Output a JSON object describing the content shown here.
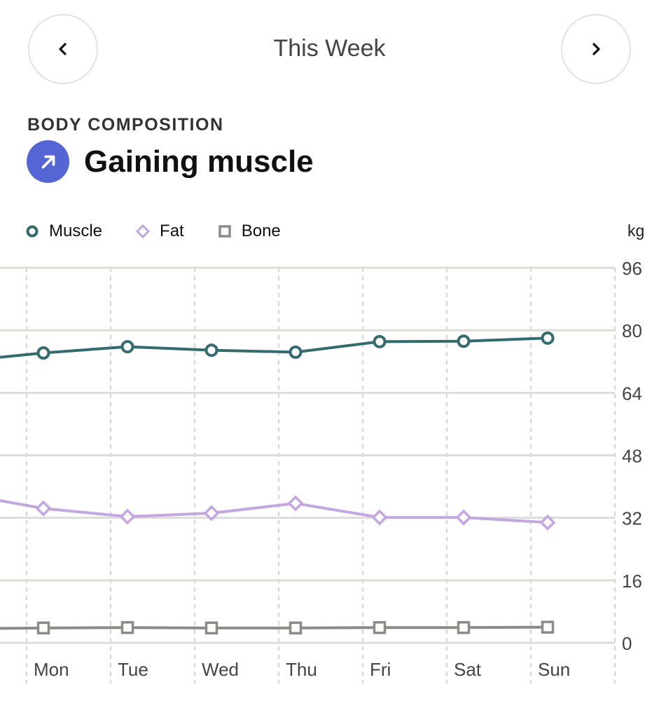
{
  "header": {
    "title": "This Week",
    "prev_label": "Previous week",
    "next_label": "Next week"
  },
  "section": {
    "label": "BODY COMPOSITION",
    "status": "Gaining muscle",
    "status_icon": "arrow-up-right-icon",
    "accent": "#5566d4"
  },
  "chart_data": {
    "type": "line",
    "unit": "kg",
    "categories": [
      "Mon",
      "Tue",
      "Wed",
      "Thu",
      "Fri",
      "Sat",
      "Sun"
    ],
    "ylim": [
      0,
      96
    ],
    "yticks": [
      0,
      16,
      32,
      48,
      64,
      80,
      96
    ],
    "grid": true,
    "legend_position": "top-left",
    "series": [
      {
        "name": "Muscle",
        "marker": "circle",
        "color": "#336b6e",
        "prev": 73.1,
        "values": [
          74.2,
          75.8,
          74.9,
          74.4,
          77.1,
          77.2,
          78.0
        ]
      },
      {
        "name": "Fat",
        "marker": "diamond",
        "color": "#c3a6e2",
        "prev": 36.4,
        "values": [
          34.4,
          32.3,
          33.2,
          35.7,
          32.1,
          32.1,
          30.8
        ]
      },
      {
        "name": "Bone",
        "marker": "square",
        "color": "#8e8a88",
        "prev": 3.7,
        "values": [
          3.8,
          3.9,
          3.8,
          3.8,
          3.9,
          3.9,
          4.0
        ]
      }
    ]
  }
}
